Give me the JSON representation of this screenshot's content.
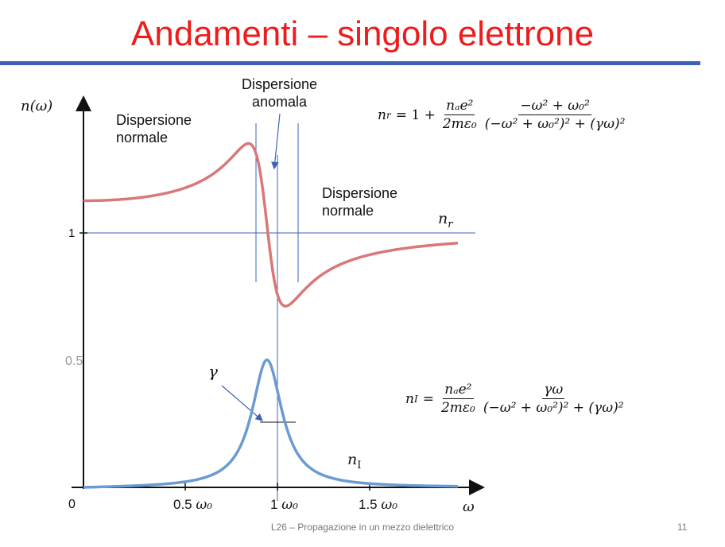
{
  "slide": {
    "title": "Andamenti – singolo elettrone",
    "footer": "L26 – Propagazione in un mezzo dielettrico",
    "page_number": "11",
    "accent_color": "#3a63b8",
    "title_color": "#ee1c1c"
  },
  "figure": {
    "y_axis_label": "n(ω)",
    "x_axis_label": "ω",
    "tick_one": "1",
    "tick_half": "0.5",
    "origin": "0",
    "x_tick_05": "0.5",
    "x_tick_1": "1",
    "x_tick_15": "1.5",
    "omega0": "ω₀",
    "gamma": "γ",
    "curve_nr_label": "n",
    "curve_nr_sub": "r",
    "curve_ni_label": "n",
    "curve_ni_sub": "I",
    "region_left_1": "Dispersione",
    "region_left_2": "normale",
    "region_mid_1": "Dispersione",
    "region_mid_2": "anomala",
    "region_right_1": "Dispersione",
    "region_right_2": "normale",
    "nr_color": "#d97878",
    "ni_color": "#6b9bd2"
  },
  "equations": {
    "nr_lhs": "n",
    "nr_lhs_sub": "r",
    "nr_eq": "= 1 +",
    "ni_lhs": "n",
    "ni_lhs_sub": "I",
    "ni_eq": "=",
    "prefactor_num": "nₐe²",
    "prefactor_den": "2mε₀",
    "nr_num": "−ω² + ω₀²",
    "ni_num": "γω",
    "common_den": "(−ω² + ω₀²)² + (γω)²"
  }
}
